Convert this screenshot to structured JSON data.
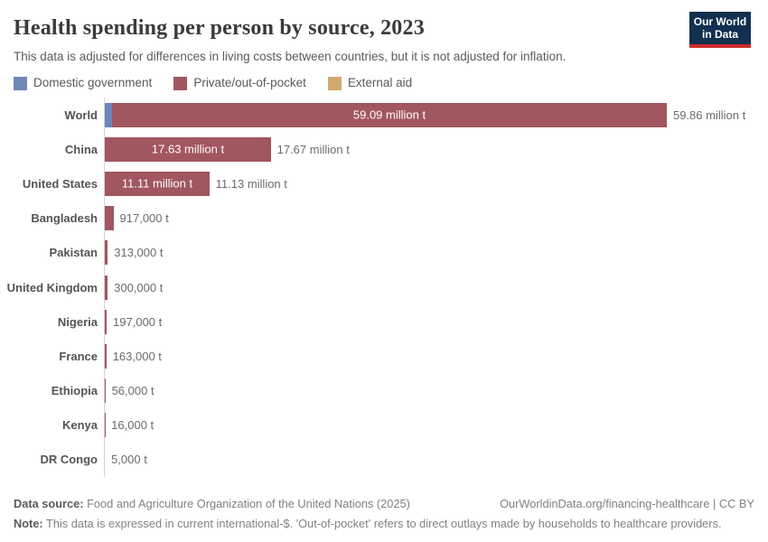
{
  "header": {
    "title": "Health spending per person by source, 2023",
    "subtitle": "This data is adjusted for differences in living costs between countries, but it is not adjusted for inflation.",
    "logo_line1": "Our World",
    "logo_line2": "in Data"
  },
  "legend": {
    "items": [
      {
        "label": "Domestic government",
        "color": "#6e87b7"
      },
      {
        "label": "Private/out-of-pocket",
        "color": "#a2565f"
      },
      {
        "label": "External aid",
        "color": "#d2a96e"
      }
    ]
  },
  "chart_data": {
    "type": "bar",
    "orientation": "horizontal",
    "stacked": true,
    "unit": "t",
    "x_max_value": 59860000,
    "axis_hidden": true,
    "series_names": [
      "Domestic government",
      "Private/out-of-pocket",
      "External aid"
    ],
    "rows": [
      {
        "entity": "World",
        "domestic_government": 770000,
        "private_out_of_pocket": 59090000,
        "total": 59860000,
        "inside_label": "59.09 million t",
        "total_label": "59.86 million t"
      },
      {
        "entity": "China",
        "domestic_government": 40000,
        "private_out_of_pocket": 17630000,
        "total": 17670000,
        "inside_label": "17.63 million t",
        "total_label": "17.67 million t"
      },
      {
        "entity": "United States",
        "domestic_government": 20000,
        "private_out_of_pocket": 11110000,
        "total": 11130000,
        "inside_label": "11.11 million t",
        "total_label": "11.13 million t"
      },
      {
        "entity": "Bangladesh",
        "domestic_government": 0,
        "private_out_of_pocket": 917000,
        "total": 917000,
        "inside_label": null,
        "total_label": "917,000 t"
      },
      {
        "entity": "Pakistan",
        "domestic_government": 0,
        "private_out_of_pocket": 313000,
        "total": 313000,
        "inside_label": null,
        "total_label": "313,000 t"
      },
      {
        "entity": "United Kingdom",
        "domestic_government": 0,
        "private_out_of_pocket": 300000,
        "total": 300000,
        "inside_label": null,
        "total_label": "300,000 t"
      },
      {
        "entity": "Nigeria",
        "domestic_government": 0,
        "private_out_of_pocket": 197000,
        "total": 197000,
        "inside_label": null,
        "total_label": "197,000 t"
      },
      {
        "entity": "France",
        "domestic_government": 0,
        "private_out_of_pocket": 163000,
        "total": 163000,
        "inside_label": null,
        "total_label": "163,000 t"
      },
      {
        "entity": "Ethiopia",
        "domestic_government": 0,
        "private_out_of_pocket": 56000,
        "total": 56000,
        "inside_label": null,
        "total_label": "56,000 t"
      },
      {
        "entity": "Kenya",
        "domestic_government": 0,
        "private_out_of_pocket": 16000,
        "total": 16000,
        "inside_label": null,
        "total_label": "16,000 t"
      },
      {
        "entity": "DR Congo",
        "domestic_government": 0,
        "private_out_of_pocket": 5000,
        "total": 5000,
        "inside_label": null,
        "total_label": "5,000 t"
      }
    ]
  },
  "footer": {
    "datasource_label": "Data source:",
    "datasource": "Food and Agriculture Organization of the United Nations (2025)",
    "link": "OurWorldinData.org/financing-healthcare | CC BY",
    "note_label": "Note:",
    "note": "This data is expressed in current international-$. 'Out-of-pocket' refers to direct outlays made by households to healthcare providers."
  }
}
